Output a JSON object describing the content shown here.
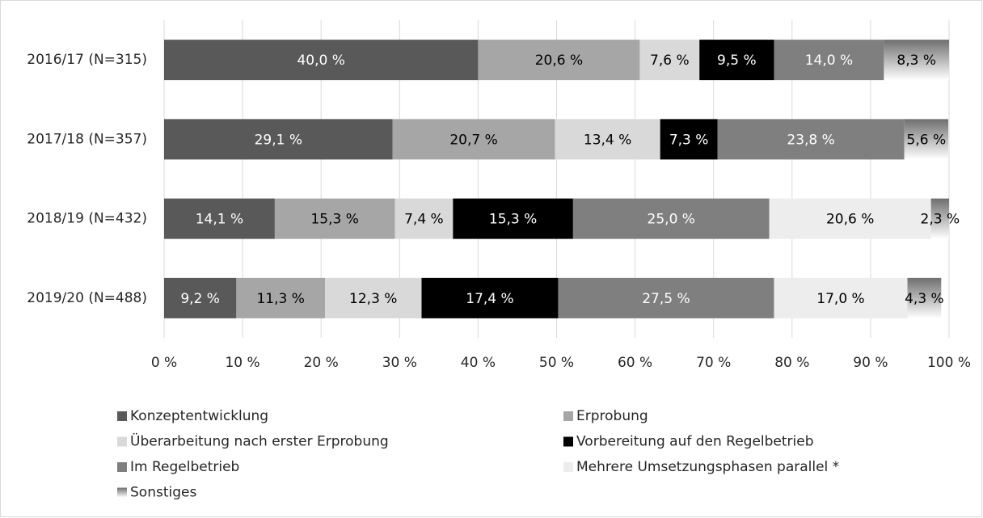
{
  "chart_data": {
    "type": "stacked-barh",
    "categories": [
      "2016/17 (N=315)",
      "2017/18 (N=357)",
      "2018/19 (N=432)",
      "2019/20 (N=488)"
    ],
    "series": [
      {
        "name": "Konzeptentwicklung",
        "color": "#595959",
        "label_color": "#ffffff",
        "values": [
          40.0,
          29.1,
          14.1,
          9.2
        ],
        "value_labels": [
          "40,0 %",
          "29,1 %",
          "14,1 %",
          "9,2 %"
        ]
      },
      {
        "name": "Erprobung",
        "color": "#a6a6a6",
        "label_color": "#000000",
        "values": [
          20.6,
          20.7,
          15.3,
          11.3
        ],
        "value_labels": [
          "20,6 %",
          "20,7 %",
          "15,3 %",
          "11,3 %"
        ]
      },
      {
        "name": "Überarbeitung nach erster Erprobung",
        "color": "#d9d9d9",
        "label_color": "#000000",
        "values": [
          7.6,
          13.4,
          7.4,
          12.3
        ],
        "value_labels": [
          "7,6 %",
          "13,4 %",
          "7,4 %",
          "12,3 %"
        ]
      },
      {
        "name": "Vorbereitung auf den Regelbetrieb",
        "color": "#000000",
        "label_color": "#ffffff",
        "values": [
          9.5,
          7.3,
          15.3,
          17.4
        ],
        "value_labels": [
          "9,5 %",
          "7,3 %",
          "15,3 %",
          "17,4 %"
        ]
      },
      {
        "name": "Im Regelbetrieb",
        "color": "#7f7f7f",
        "label_color": "#ffffff",
        "values": [
          14.0,
          23.8,
          25.0,
          27.5
        ],
        "value_labels": [
          "14,0 %",
          "23,8 %",
          "25,0 %",
          "27,5 %"
        ]
      },
      {
        "name": "Mehrere Umsetzungsphasen parallel *",
        "color": "#ededed",
        "label_color": "#000000",
        "values": [
          null,
          null,
          20.6,
          17.0
        ],
        "value_labels": [
          null,
          null,
          "20,6 %",
          "17,0 %"
        ]
      },
      {
        "name": "Sonstiges",
        "color": "#7f7f7f",
        "gradient": true,
        "label_color": "#000000",
        "values": [
          8.3,
          5.6,
          2.3,
          4.3
        ],
        "value_labels": [
          "8,3 %",
          "5,6 %",
          "2,3 %",
          "4,3 %"
        ]
      }
    ],
    "xlim": [
      0,
      100
    ],
    "xticks": [
      {
        "value": 0,
        "label": "0 %"
      },
      {
        "value": 10,
        "label": "10 %"
      },
      {
        "value": 20,
        "label": "20 %"
      },
      {
        "value": 30,
        "label": "30 %"
      },
      {
        "value": 40,
        "label": "40 %"
      },
      {
        "value": 50,
        "label": "50 %"
      },
      {
        "value": 60,
        "label": "60 %"
      },
      {
        "value": 70,
        "label": "70 %"
      },
      {
        "value": 80,
        "label": "80 %"
      },
      {
        "value": 90,
        "label": "90 %"
      },
      {
        "value": 100,
        "label": "100 %"
      }
    ],
    "grid": true,
    "legend": "bottom"
  }
}
